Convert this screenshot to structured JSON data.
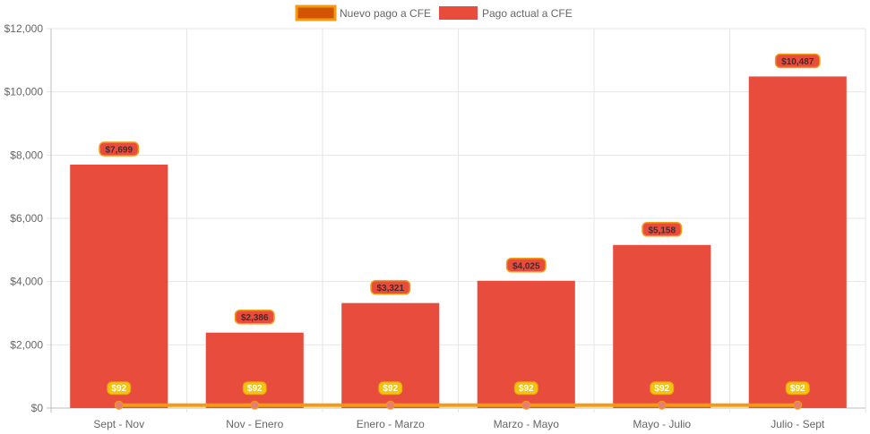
{
  "chart_data": {
    "type": "bar",
    "categories": [
      "Sept - Nov",
      "Nov - Enero",
      "Enero - Marzo",
      "Marzo - Mayo",
      "Mayo - Julio",
      "Julio - Sept"
    ],
    "series": [
      {
        "name": "Nuevo pago a CFE",
        "type": "line",
        "values": [
          92,
          92,
          92,
          92,
          92,
          92
        ],
        "labels": [
          "$92",
          "$92",
          "$92",
          "$92",
          "$92",
          "$92"
        ],
        "color": "#F39C12",
        "point_color": "#E67E73"
      },
      {
        "name": "Pago actual a CFE",
        "type": "bar",
        "values": [
          7699,
          2386,
          3321,
          4025,
          5158,
          10487
        ],
        "labels": [
          "$7,699",
          "$2,386",
          "$3,321",
          "$4,025",
          "$5,158",
          "$10,487"
        ],
        "color": "#E74C3C"
      }
    ],
    "legend_swatch_colors": [
      "#D35400",
      "#E74C3C"
    ],
    "label_border_color": "#F39C12",
    "yticks": [
      "$0",
      "$2,000",
      "$4,000",
      "$6,000",
      "$8,000",
      "$10,000",
      "$12,000"
    ],
    "ylim": [
      0,
      12000
    ],
    "grid": true,
    "legend_position": "top"
  }
}
